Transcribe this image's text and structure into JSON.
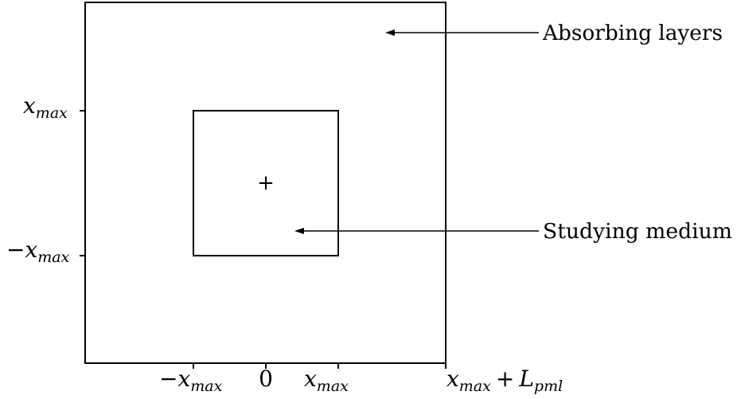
{
  "annotations": {
    "outer": "Absorbing layers",
    "inner": "Studying medium"
  },
  "math": {
    "x": "x",
    "max": "max",
    "minus": "−",
    "plus": "+",
    "L": "L",
    "pml": "pml",
    "zero": "0",
    "center_marker": "+"
  }
}
